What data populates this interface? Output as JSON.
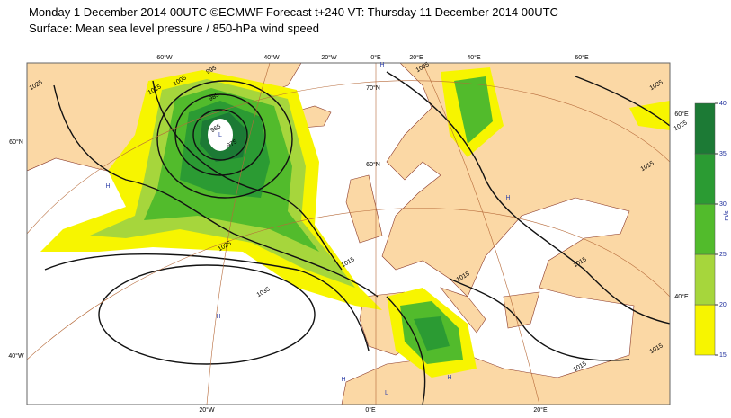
{
  "header": {
    "title": "Monday 1 December 2014 00UTC ©ECMWF Forecast t+240 VT: Thursday 11 December 2014 00UTC",
    "subtitle": "Surface: Mean sea level pressure / 850-hPa wind speed"
  },
  "legend": {
    "unit": "m/s",
    "ticks": [
      15,
      20,
      25,
      30,
      35,
      40
    ],
    "colors": [
      "#f7f500",
      "#a6d63c",
      "#52bb2c",
      "#2b9b33",
      "#1c7a35"
    ]
  },
  "map": {
    "graticule_labels": [
      "60°W",
      "40°W",
      "20°W",
      "0°E",
      "20°E",
      "40°E",
      "60°E",
      "20°W",
      "0°E",
      "20°E",
      "60°N",
      "40°W",
      "60°E",
      "40°E",
      "70°N",
      "60°N"
    ],
    "isobar_labels": [
      "1025",
      "1015",
      "1005",
      "995",
      "985",
      "965",
      "975",
      "1025",
      "1015",
      "1035",
      "1005",
      "1035",
      "1025",
      "1015",
      "1015",
      "1015",
      "1015",
      "1015"
    ],
    "pressure_centers": [
      "H",
      "H",
      "H",
      "H",
      "H",
      "L",
      "H",
      "L"
    ]
  }
}
